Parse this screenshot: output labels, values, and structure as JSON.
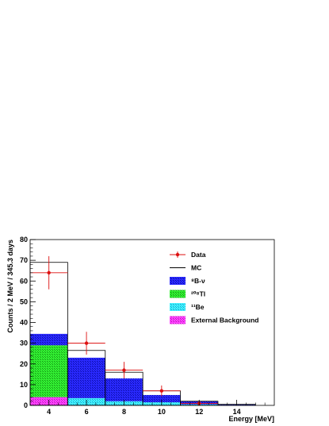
{
  "chart_data": {
    "type": "bar",
    "subtype": "stacked-histogram-with-data-points",
    "xlabel": "Energy [MeV]",
    "ylabel": "Counts / 2 MeV / 345.3 days",
    "xlim": [
      3,
      16
    ],
    "ylim": [
      0,
      80
    ],
    "xticks": [
      4,
      6,
      8,
      10,
      12,
      14
    ],
    "yticks": [
      0,
      10,
      20,
      30,
      40,
      50,
      60,
      70,
      80
    ],
    "bin_edges": [
      3,
      5,
      7,
      9,
      11,
      13,
      15
    ],
    "series": [
      {
        "name": "External Background",
        "color": "#ff33ff",
        "pattern": "dots",
        "values": [
          4,
          0,
          0,
          0,
          0,
          0
        ]
      },
      {
        "name": "¹¹Be",
        "color": "#22e8ff",
        "pattern": "dots",
        "values": [
          0,
          3.5,
          2,
          1.5,
          0.5,
          0.2
        ]
      },
      {
        "name": "²⁰⁸Tl",
        "color": "#22dd22",
        "pattern": "dots",
        "values": [
          25,
          0,
          0,
          0,
          0,
          0
        ]
      },
      {
        "name": "⁸B-ν",
        "color": "#1a1aee",
        "pattern": "dots",
        "values": [
          5.5,
          19.5,
          11,
          3.5,
          1.5,
          0.3
        ]
      }
    ],
    "mc": {
      "name": "MC",
      "color": "#000000",
      "values": [
        69,
        26.5,
        16,
        7,
        2,
        0.5
      ]
    },
    "data_points": {
      "name": "Data",
      "color": "#dd1111",
      "x": [
        4,
        6,
        8,
        10,
        12
      ],
      "y": [
        64,
        30,
        17,
        7,
        1
      ],
      "yerr": [
        8,
        5.5,
        4,
        2.6,
        1
      ],
      "xerr": [
        1,
        1,
        1,
        1,
        1
      ]
    },
    "legend": {
      "placement": "top-right",
      "items": [
        {
          "label": "Data",
          "kind": "point"
        },
        {
          "label": "MC",
          "kind": "line"
        },
        {
          "label": "⁸B-ν",
          "kind": "fill"
        },
        {
          "label": "²⁰⁸Tl",
          "kind": "fill"
        },
        {
          "label": "¹¹Be",
          "kind": "fill"
        },
        {
          "label": "External Background",
          "kind": "fill"
        }
      ]
    }
  }
}
